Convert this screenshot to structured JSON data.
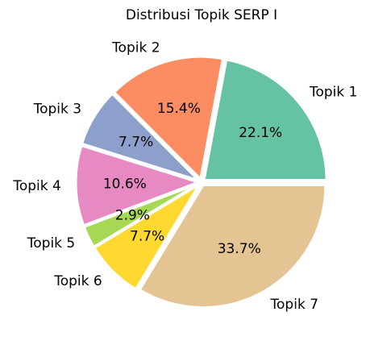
{
  "chart_data": {
    "type": "pie",
    "title": "Distribusi Topik SERP I",
    "slices": [
      {
        "label": "Topik 1",
        "value": 22.1,
        "display": "22.1%",
        "color": "#66c2a5"
      },
      {
        "label": "Topik 2",
        "value": 15.4,
        "display": "15.4%",
        "color": "#fc8d62"
      },
      {
        "label": "Topik 3",
        "value": 7.7,
        "display": "7.7%",
        "color": "#8da0cb"
      },
      {
        "label": "Topik 4",
        "value": 10.6,
        "display": "10.6%",
        "color": "#e78ac3"
      },
      {
        "label": "Topik 5",
        "value": 2.9,
        "display": "2.9%",
        "color": "#a6d854"
      },
      {
        "label": "Topik 6",
        "value": 7.7,
        "display": "7.7%",
        "color": "#ffd92f"
      },
      {
        "label": "Topik 7",
        "value": 33.7,
        "display": "33.7%",
        "color": "#e5c494"
      }
    ],
    "start_angle_deg": 0,
    "direction": "counterclockwise",
    "edge_color": "#ffffff"
  }
}
